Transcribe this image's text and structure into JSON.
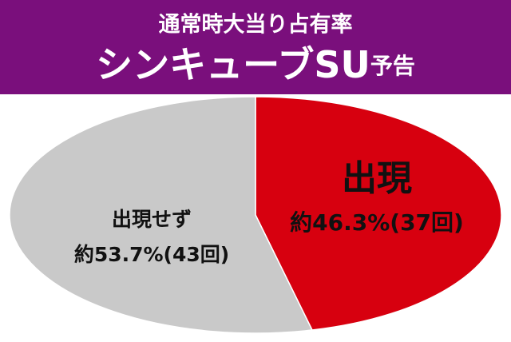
{
  "chart_data": {
    "type": "pie",
    "title": "通常時大当り占有率",
    "subtitle": [
      "シンキューブSU",
      "予告"
    ],
    "categories": [
      "出現",
      "出現せず"
    ],
    "values": [
      46.3,
      53.7
    ],
    "value_labels": [
      "約46.3%(37回)",
      "約53.7%(43回)"
    ],
    "colors": [
      "#d7000f",
      "#c9c9c9"
    ]
  }
}
